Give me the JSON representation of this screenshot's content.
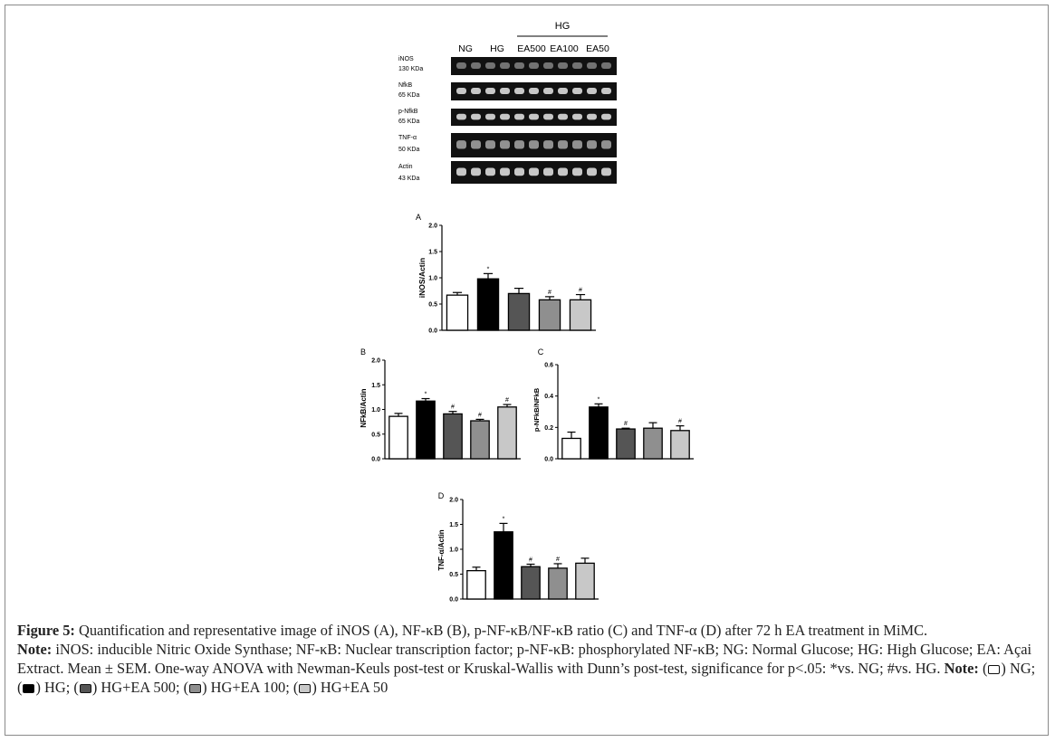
{
  "blot": {
    "group_header": "HG",
    "lanes": [
      "NG",
      "HG",
      "EA500",
      "EA100",
      "EA50"
    ],
    "rows": [
      {
        "name": "iNOS",
        "size": "130 KDa"
      },
      {
        "name": "NfkB",
        "size": "65 KDa"
      },
      {
        "name": "p-NfkB",
        "size": "65 KDa"
      },
      {
        "name": "TNF-α",
        "size": "50 KDa"
      },
      {
        "name": "Actin",
        "size": "43 KDa"
      }
    ]
  },
  "chart_data": [
    {
      "panel": "A",
      "type": "bar",
      "ylabel": "iNOS/Actin",
      "ylim": [
        0,
        2.0
      ],
      "yticks": [
        "0.0",
        "0.5",
        "1.0",
        "1.5",
        "2.0"
      ],
      "ytick_values": [
        0,
        0.5,
        1.0,
        1.5,
        2.0
      ],
      "categories": [
        "NG",
        "HG",
        "HG+EA 500",
        "HG+EA 100",
        "HG+EA 50"
      ],
      "values": [
        0.67,
        0.98,
        0.7,
        0.58,
        0.58
      ],
      "errors": [
        0.05,
        0.1,
        0.1,
        0.06,
        0.1
      ],
      "marks": [
        "",
        "*",
        "",
        "#",
        "#"
      ],
      "colors": [
        "#ffffff",
        "#000000",
        "#555555",
        "#8f8f8f",
        "#c8c8c8"
      ]
    },
    {
      "panel": "B",
      "type": "bar",
      "ylabel": "NFkB/Actin",
      "ylim": [
        0,
        2.0
      ],
      "yticks": [
        "0.0",
        "0.5",
        "1.0",
        "1.5",
        "2.0"
      ],
      "ytick_values": [
        0,
        0.5,
        1.0,
        1.5,
        2.0
      ],
      "categories": [
        "NG",
        "HG",
        "HG+EA 500",
        "HG+EA 100",
        "HG+EA 50"
      ],
      "values": [
        0.86,
        1.17,
        0.91,
        0.77,
        1.05
      ],
      "errors": [
        0.06,
        0.05,
        0.05,
        0.03,
        0.05
      ],
      "marks": [
        "",
        "*",
        "#",
        "#",
        "#"
      ],
      "colors": [
        "#ffffff",
        "#000000",
        "#555555",
        "#8f8f8f",
        "#c8c8c8"
      ]
    },
    {
      "panel": "C",
      "type": "bar",
      "ylabel": "p-NFkB/NFkB",
      "ylim": [
        0,
        0.6
      ],
      "yticks": [
        "0.0",
        "0.2",
        "0.4",
        "0.6"
      ],
      "ytick_values": [
        0,
        0.2,
        0.4,
        0.6
      ],
      "categories": [
        "NG",
        "HG",
        "HG+EA 500",
        "HG+EA 100",
        "HG+EA 50"
      ],
      "values": [
        0.13,
        0.33,
        0.19,
        0.195,
        0.18
      ],
      "errors": [
        0.04,
        0.02,
        0.005,
        0.035,
        0.03
      ],
      "marks": [
        "",
        "*",
        "#",
        "",
        "#"
      ],
      "colors": [
        "#ffffff",
        "#000000",
        "#555555",
        "#8f8f8f",
        "#c8c8c8"
      ]
    },
    {
      "panel": "D",
      "type": "bar",
      "ylabel": "TNF-α/Actin",
      "ylim": [
        0,
        2.0
      ],
      "yticks": [
        "0.0",
        "0.5",
        "1.0",
        "1.5",
        "2.0"
      ],
      "ytick_values": [
        0,
        0.5,
        1.0,
        1.5,
        2.0
      ],
      "categories": [
        "NG",
        "HG",
        "HG+EA 500",
        "HG+EA 100",
        "HG+EA 50"
      ],
      "values": [
        0.57,
        1.35,
        0.65,
        0.62,
        0.72
      ],
      "errors": [
        0.07,
        0.17,
        0.05,
        0.09,
        0.1
      ],
      "marks": [
        "",
        "*",
        "#",
        "#",
        ""
      ],
      "colors": [
        "#ffffff",
        "#000000",
        "#555555",
        "#8f8f8f",
        "#c8c8c8"
      ]
    }
  ],
  "caption": {
    "label": "Figure 5:",
    "text": "Quantification and representative image of iNOS (A), NF-κB (B), p-NF-κB/NF-κB ratio (C) and TNF-α (D) after 72 h EA treatment in MiMC.",
    "note_label": "Note:",
    "note_text": "iNOS: inducible Nitric Oxide Synthase; NF-κB: Nuclear transcription factor; p-NF-κB: phosphorylated NF-κB; NG: Normal Glucose; HG: High Glucose; EA: Açai Extract. Mean ± SEM. One-way ANOVA with Newman-Keuls post-test or Kruskal-Wallis with Dunn’s post-test, significance for p<.05: *vs. NG; #vs. HG.",
    "note2_label": "Note:",
    "legend": [
      {
        "label": "NG",
        "color": "#ffffff"
      },
      {
        "label": "HG",
        "color": "#000000"
      },
      {
        "label": "HG+EA 500",
        "color": "#555555"
      },
      {
        "label": "HG+EA 100",
        "color": "#8f8f8f"
      },
      {
        "label": "HG+EA 50",
        "color": "#c8c8c8"
      }
    ]
  }
}
